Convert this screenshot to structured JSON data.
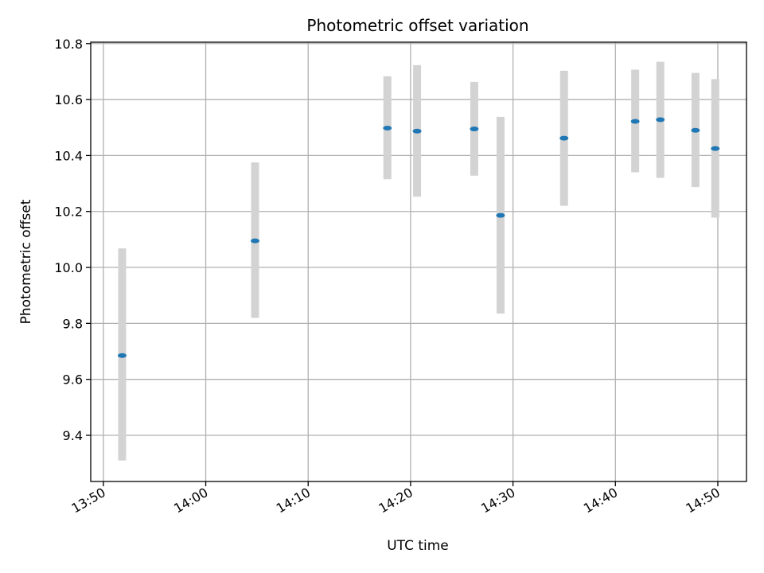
{
  "chart_data": {
    "type": "scatter",
    "title": "Photometric offset variation",
    "xlabel": "UTC time",
    "ylabel": "Photometric offset",
    "grid": true,
    "legend": null,
    "x_tick_labels": [
      "13:50",
      "14:00",
      "14:10",
      "14:20",
      "14:30",
      "14:40",
      "14:50"
    ],
    "x_tick_values": [
      "13:50",
      "14:00",
      "14:10",
      "14:20",
      "14:30",
      "14:40",
      "14:50"
    ],
    "y_tick_labels": [
      "9.4",
      "9.6",
      "9.8",
      "10.0",
      "10.2",
      "10.4",
      "10.6",
      "10.8"
    ],
    "y_tick_values": [
      9.4,
      9.6,
      9.8,
      10.0,
      10.2,
      10.4,
      10.6,
      10.8
    ],
    "xlim": [
      "13:48:46",
      "14:52:48"
    ],
    "ylim": [
      9.235,
      10.805
    ],
    "x_tick_rotation_deg": 30,
    "colors": {
      "point": "#1f77b4",
      "errorbar": "#d3d3d3",
      "grid": "#b0b0b0"
    },
    "series": [
      {
        "x": [
          "13:51:50",
          "14:04:49",
          "14:17:44",
          "14:20:38",
          "14:26:13",
          "14:28:47",
          "14:34:59",
          "14:41:56",
          "14:44:23",
          "14:47:49",
          "14:49:45"
        ],
        "y": [
          9.685,
          10.095,
          10.498,
          10.487,
          10.495,
          10.186,
          10.462,
          10.522,
          10.528,
          10.49,
          10.425
        ],
        "yerr_low": [
          9.31,
          9.82,
          10.315,
          10.253,
          10.328,
          9.835,
          10.22,
          10.34,
          10.32,
          10.287,
          10.178
        ],
        "yerr_high": [
          10.068,
          10.375,
          10.683,
          10.723,
          10.663,
          10.538,
          10.703,
          10.707,
          10.735,
          10.695,
          10.673
        ]
      }
    ]
  }
}
